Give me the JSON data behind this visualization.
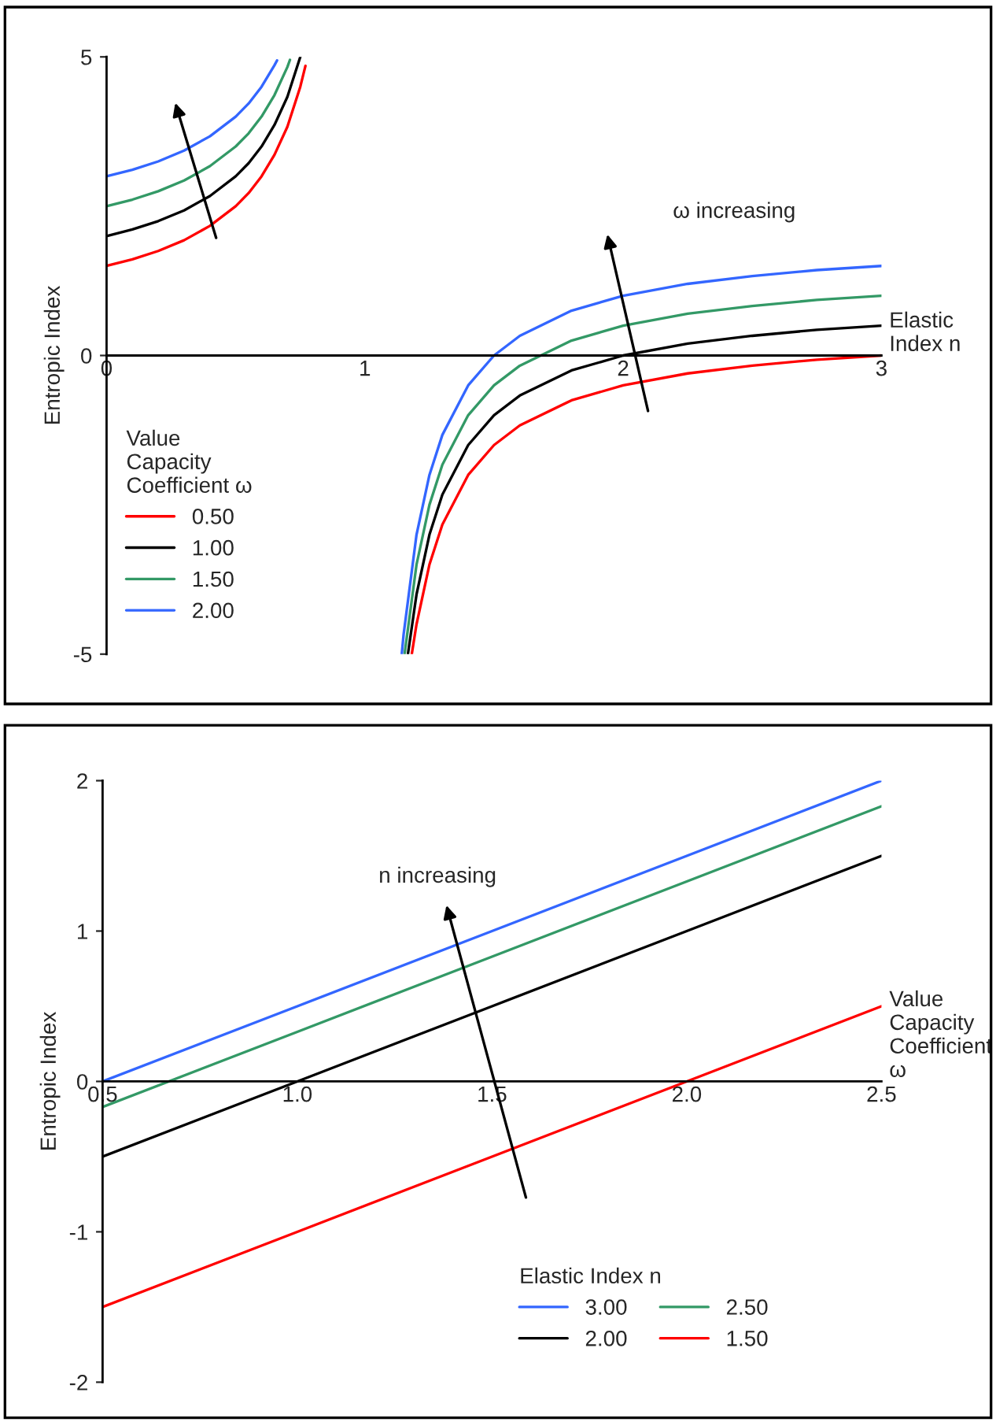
{
  "chart_data": [
    {
      "type": "line",
      "xlabel": "Elastic\nIndex n",
      "ylabel": "Entropic Index",
      "legend_title": "Value\nCapacity\nCoefficient ω",
      "legend": "bottom left",
      "grid": false,
      "xlim": [
        0,
        3
      ],
      "xticks": [
        0,
        1,
        2,
        3
      ],
      "ylim": [
        -5,
        5
      ],
      "yticks": [
        -5,
        0,
        5
      ],
      "annotations": [
        "ω increasing"
      ],
      "series": [
        {
          "name": "0.50",
          "color": "#ff0000",
          "x": [
            0,
            0.1,
            0.2,
            0.3,
            0.4,
            0.5,
            0.55,
            0.6,
            0.65,
            0.7,
            0.75,
            0.77,
            null,
            1.182,
            1.2,
            1.25,
            1.3,
            1.4,
            1.5,
            1.6,
            1.8,
            2.0,
            2.25,
            2.5,
            2.75,
            3.0
          ],
          "values": [
            1.5,
            1.61,
            1.75,
            1.93,
            2.17,
            2.5,
            2.72,
            3.0,
            3.36,
            3.83,
            4.5,
            4.85,
            null,
            -4.99,
            -4.5,
            -3.5,
            -2.83,
            -2.0,
            -1.5,
            -1.17,
            -0.75,
            -0.5,
            -0.3,
            -0.17,
            -0.07,
            0
          ]
        },
        {
          "name": "1.00",
          "color": "#000000",
          "x": [
            0,
            0.1,
            0.2,
            0.3,
            0.4,
            0.5,
            0.55,
            0.6,
            0.65,
            0.7,
            0.75,
            null,
            1.167,
            1.2,
            1.25,
            1.3,
            1.4,
            1.5,
            1.6,
            1.8,
            2.0,
            2.25,
            2.5,
            2.75,
            3.0
          ],
          "values": [
            2,
            2.11,
            2.25,
            2.43,
            2.67,
            3,
            3.22,
            3.5,
            3.86,
            4.33,
            5.0,
            null,
            -4.99,
            -4.0,
            -3.0,
            -2.33,
            -1.5,
            -1.0,
            -0.67,
            -0.25,
            0,
            0.2,
            0.33,
            0.43,
            0.5
          ]
        },
        {
          "name": "1.50",
          "color": "#339966",
          "x": [
            0,
            0.1,
            0.2,
            0.3,
            0.4,
            0.5,
            0.55,
            0.6,
            0.65,
            0.7,
            0.71,
            null,
            1.154,
            1.2,
            1.25,
            1.3,
            1.4,
            1.5,
            1.6,
            1.8,
            2.0,
            2.25,
            2.5,
            2.75,
            3.0
          ],
          "values": [
            2.5,
            2.61,
            2.75,
            2.93,
            3.17,
            3.5,
            3.72,
            4.0,
            4.36,
            4.83,
            4.95,
            null,
            -4.99,
            -3.5,
            -2.5,
            -1.83,
            -1.0,
            -0.5,
            -0.17,
            0.25,
            0.5,
            0.7,
            0.83,
            0.93,
            1.0
          ]
        },
        {
          "name": "2.00",
          "color": "#3366ff",
          "x": [
            0,
            0.1,
            0.2,
            0.3,
            0.4,
            0.5,
            0.55,
            0.6,
            0.65,
            0.66,
            null,
            1.143,
            1.15,
            1.2,
            1.25,
            1.3,
            1.4,
            1.5,
            1.6,
            1.8,
            2.0,
            2.25,
            2.5,
            2.75,
            3.0
          ],
          "values": [
            3,
            3.11,
            3.25,
            3.43,
            3.67,
            4,
            4.22,
            4.5,
            4.86,
            4.94,
            null,
            -4.99,
            -4.67,
            -3.0,
            -2.0,
            -1.33,
            -0.5,
            0,
            0.33,
            0.75,
            1.0,
            1.2,
            1.33,
            1.43,
            1.5
          ]
        }
      ]
    },
    {
      "type": "line",
      "xlabel": "Value\nCapacity\nCoefficient\nω",
      "ylabel": "Entropic Index",
      "legend_title": "Elastic Index n",
      "legend": "bottom right",
      "grid": false,
      "xlim": [
        0.5,
        2.5
      ],
      "xticks": [
        {
          "value": 0.5,
          "label": "0.5"
        },
        {
          "value": 1,
          "label": "1.0"
        },
        {
          "value": 1.5,
          "label": "1.5"
        },
        {
          "value": 2,
          "label": "2.0"
        },
        {
          "value": 2.5,
          "label": "2.5"
        }
      ],
      "ylim": [
        -2,
        2
      ],
      "yticks": [
        -2,
        -1,
        0,
        1,
        2
      ],
      "annotations": [
        "n increasing"
      ],
      "series": [
        {
          "name": "3.00",
          "color": "#3366ff",
          "x": [
            0.5,
            1.0,
            1.5,
            2.0,
            2.5
          ],
          "values": [
            0,
            0.5,
            1.0,
            1.5,
            2.0
          ]
        },
        {
          "name": "2.50",
          "color": "#339966",
          "x": [
            0.5,
            1.0,
            1.5,
            2.0,
            2.5
          ],
          "values": [
            -0.17,
            0.33,
            0.83,
            1.33,
            1.83
          ]
        },
        {
          "name": "2.00",
          "color": "#000000",
          "x": [
            0.5,
            1.0,
            1.5,
            2.0,
            2.5
          ],
          "values": [
            -0.5,
            0,
            0.5,
            1.0,
            1.5
          ]
        },
        {
          "name": "1.50",
          "color": "#ff0000",
          "x": [
            0.5,
            1.0,
            1.5,
            2.0,
            2.5
          ],
          "values": [
            -1.5,
            -1.0,
            -0.5,
            0,
            0.5
          ]
        }
      ]
    }
  ]
}
